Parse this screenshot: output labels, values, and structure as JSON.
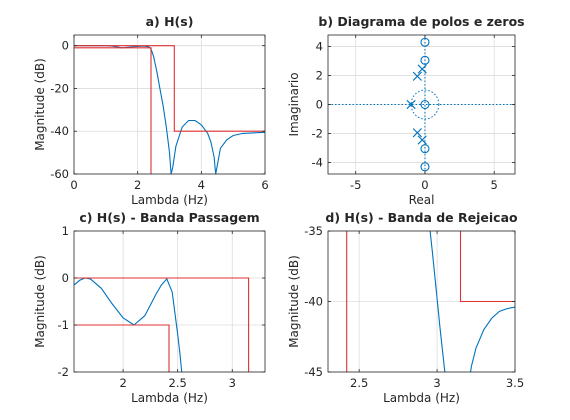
{
  "chart_data": [
    {
      "id": "a",
      "type": "line",
      "title": "a) H(s)",
      "xlabel": "Lambda (Hz)",
      "ylabel": "Magnitude (dB)",
      "xlim": [
        0,
        6
      ],
      "ylim": [
        -60,
        5
      ],
      "xticks": [
        "0",
        "2",
        "4",
        "6"
      ],
      "yticks": [
        "0",
        "-20",
        "-40",
        "-60"
      ],
      "grid": true,
      "series": [
        {
          "color": "#0072BD",
          "x": [
            0,
            1,
            1.2,
            1.5,
            1.8,
            2.0,
            2.2,
            2.35,
            2.42,
            2.5,
            2.6,
            2.7,
            2.8,
            2.9,
            3.0,
            3.05,
            3.1,
            3.2,
            3.4,
            3.6,
            3.8,
            4.0,
            4.2,
            4.3,
            4.4,
            4.45,
            4.5,
            4.6,
            4.8,
            5.0,
            5.3,
            5.6,
            6.0
          ],
          "y": [
            0,
            0,
            -0.2,
            -1.0,
            -0.6,
            -0.3,
            -0.2,
            -0.5,
            -1.5,
            -5,
            -12,
            -20,
            -28,
            -38,
            -50,
            -60,
            -57,
            -47,
            -38,
            -35,
            -35,
            -37,
            -41,
            -45,
            -52,
            -60,
            -56,
            -48,
            -44,
            -42,
            -41,
            -40.8,
            -40.5
          ]
        },
        {
          "color": "#E03030",
          "x": [
            -0.2,
            2.42,
            2.42
          ],
          "y": [
            -1,
            -1,
            -65
          ]
        },
        {
          "color": "#E03030",
          "x": [
            -0.2,
            3.15,
            3.15,
            6.2
          ],
          "y": [
            0,
            0,
            -40,
            -40
          ]
        }
      ]
    },
    {
      "id": "b",
      "type": "scatter",
      "title": "b) Diagrama de polos e zeros",
      "xlabel": "Real",
      "ylabel": "Imaginario",
      "xlim": [
        -7,
        6.5
      ],
      "ylim": [
        -4.8,
        4.8
      ],
      "xticks": [
        "-5",
        "0",
        "5"
      ],
      "yticks": [
        "4",
        "2",
        "0",
        "-2",
        "-4"
      ],
      "grid": true,
      "color": "#0072BD",
      "zeros": [
        [
          0,
          4.3
        ],
        [
          0,
          3.05
        ],
        [
          0,
          0
        ],
        [
          0,
          -3.05
        ],
        [
          0,
          -4.3
        ]
      ],
      "poles": [
        [
          -0.2,
          2.45
        ],
        [
          -0.55,
          1.95
        ],
        [
          -1.0,
          0
        ],
        [
          -0.55,
          -1.95
        ],
        [
          -0.2,
          -2.45
        ]
      ]
    },
    {
      "id": "c",
      "type": "line",
      "title": "c) H(s) - Banda Passagem",
      "xlabel": "Lambda (Hz)",
      "ylabel": "Magnitude (dB)",
      "xlim": [
        1.55,
        3.3
      ],
      "ylim": [
        -2,
        1
      ],
      "xticks": [
        "2",
        "2.5",
        "3"
      ],
      "yticks": [
        "1",
        "0",
        "-1",
        "-2"
      ],
      "grid": true,
      "series": [
        {
          "color": "#0072BD",
          "x": [
            1.55,
            1.6,
            1.65,
            1.7,
            1.8,
            1.9,
            2.0,
            2.1,
            2.2,
            2.3,
            2.35,
            2.4,
            2.45,
            2.5,
            2.52,
            2.55
          ],
          "y": [
            -0.15,
            -0.05,
            0,
            -0.02,
            -0.22,
            -0.55,
            -0.85,
            -1.0,
            -0.8,
            -0.35,
            -0.15,
            -0.02,
            -0.3,
            -1.2,
            -1.6,
            -2.3
          ]
        },
        {
          "color": "#E03030",
          "x": [
            1.5,
            2.42,
            2.42
          ],
          "y": [
            -1,
            -1,
            -2.5
          ]
        },
        {
          "color": "#E03030",
          "x": [
            1.5,
            3.15,
            3.15
          ],
          "y": [
            0,
            0,
            -2.5
          ]
        }
      ]
    },
    {
      "id": "d",
      "type": "line",
      "title": "d) H(s) - Banda de Rejeicao",
      "xlabel": "Lambda (Hz)",
      "ylabel": "Magnitude (dB)",
      "xlim": [
        2.3,
        3.5
      ],
      "ylim": [
        -45,
        -35
      ],
      "xticks": [
        "2.5",
        "3",
        "3.5"
      ],
      "yticks": [
        "-35",
        "-40",
        "-45"
      ],
      "grid": true,
      "series": [
        {
          "color": "#0072BD",
          "x": [
            2.95,
            2.97,
            3.0,
            3.02,
            3.04,
            3.06,
            3.08
          ],
          "y": [
            -34.5,
            -36.5,
            -39.8,
            -42,
            -44,
            -46,
            -49
          ]
        },
        {
          "color": "#0072BD",
          "x": [
            3.2,
            3.22,
            3.25,
            3.3,
            3.35,
            3.4,
            3.45,
            3.5
          ],
          "y": [
            -46,
            -44.6,
            -43.3,
            -42,
            -41.2,
            -40.7,
            -40.5,
            -40.4
          ]
        },
        {
          "color": "#E03030",
          "x": [
            2.42,
            2.42
          ],
          "y": [
            -34,
            -46
          ]
        },
        {
          "color": "#E03030",
          "x": [
            3.15,
            3.15,
            3.6
          ],
          "y": [
            -34,
            -40,
            -40
          ]
        }
      ]
    }
  ]
}
